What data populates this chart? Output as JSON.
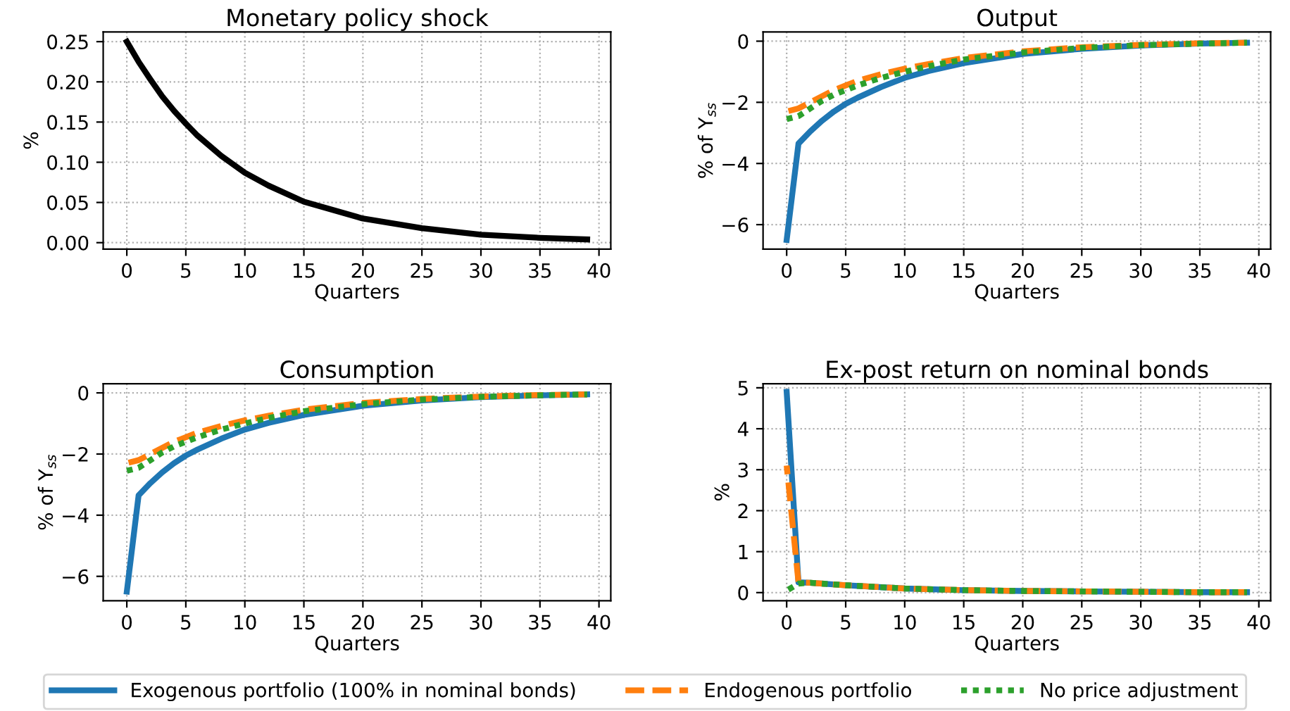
{
  "chart_data": [
    {
      "type": "line",
      "title": "Monetary policy shock",
      "xlabel": "Quarters",
      "ylabel": "%",
      "xlim": [
        -2,
        41
      ],
      "xticks": [
        0,
        5,
        10,
        15,
        20,
        25,
        30,
        35,
        40
      ],
      "ylim": [
        -0.008,
        0.262
      ],
      "yticks": [
        {
          "value": 0,
          "label": "0.00"
        },
        {
          "value": 0.05,
          "label": "0.05"
        },
        {
          "value": 0.1,
          "label": "0.10"
        },
        {
          "value": 0.15,
          "label": "0.15"
        },
        {
          "value": 0.2,
          "label": "0.20"
        },
        {
          "value": 0.25,
          "label": "0.25"
        }
      ],
      "grid": true,
      "x": [
        0,
        1,
        2,
        3,
        4,
        5,
        6,
        8,
        10,
        12,
        15,
        20,
        25,
        30,
        35,
        39
      ],
      "series": [
        {
          "color": "#000000",
          "line_style": "solid",
          "values": [
            0.25,
            0.225,
            0.203,
            0.182,
            0.164,
            0.148,
            0.133,
            0.108,
            0.087,
            0.071,
            0.051,
            0.03,
            0.018,
            0.01,
            0.006,
            0.004
          ]
        }
      ]
    },
    {
      "type": "line",
      "title": "Output",
      "xlabel": "Quarters",
      "ylabel": "% of Y$_{ss}$",
      "xlim": [
        -2,
        41
      ],
      "xticks": [
        0,
        5,
        10,
        15,
        20,
        25,
        30,
        35,
        40
      ],
      "ylim": [
        -6.8,
        0.3
      ],
      "yticks": [
        {
          "value": -6,
          "label": "−6"
        },
        {
          "value": -4,
          "label": "−4"
        },
        {
          "value": -2,
          "label": "−2"
        },
        0
      ],
      "grid": true,
      "x": [
        0,
        1,
        2,
        3,
        4,
        5,
        6,
        8,
        10,
        12,
        15,
        20,
        25,
        30,
        35,
        39
      ],
      "series": [
        {
          "color": "#1f77b4",
          "line_style": "solid",
          "values": [
            -6.5,
            -3.35,
            -2.95,
            -2.6,
            -2.3,
            -2.05,
            -1.85,
            -1.5,
            -1.2,
            -0.98,
            -0.72,
            -0.42,
            -0.25,
            -0.14,
            -0.08,
            -0.05
          ]
        },
        {
          "color": "#ff7f0e",
          "line_style": "dashed",
          "values": [
            -2.3,
            -2.2,
            -2.0,
            -1.8,
            -1.6,
            -1.45,
            -1.3,
            -1.08,
            -0.9,
            -0.75,
            -0.55,
            -0.33,
            -0.2,
            -0.12,
            -0.07,
            -0.05
          ]
        },
        {
          "color": "#2ca02c",
          "line_style": "dotted",
          "values": [
            -2.55,
            -2.45,
            -2.2,
            -1.95,
            -1.75,
            -1.6,
            -1.45,
            -1.2,
            -1.0,
            -0.82,
            -0.6,
            -0.37,
            -0.22,
            -0.13,
            -0.08,
            -0.05
          ]
        }
      ]
    },
    {
      "type": "line",
      "title": "Consumption",
      "xlabel": "Quarters",
      "ylabel": "% of Y$_{ss}$",
      "xlim": [
        -2,
        41
      ],
      "xticks": [
        0,
        5,
        10,
        15,
        20,
        25,
        30,
        35,
        40
      ],
      "ylim": [
        -6.8,
        0.3
      ],
      "yticks": [
        {
          "value": -6,
          "label": "−6"
        },
        {
          "value": -4,
          "label": "−4"
        },
        {
          "value": -2,
          "label": "−2"
        },
        0
      ],
      "grid": true,
      "x": [
        0,
        1,
        2,
        3,
        4,
        5,
        6,
        8,
        10,
        12,
        15,
        20,
        25,
        30,
        35,
        39
      ],
      "series": [
        {
          "color": "#1f77b4",
          "line_style": "solid",
          "values": [
            -6.5,
            -3.35,
            -2.95,
            -2.6,
            -2.3,
            -2.05,
            -1.85,
            -1.5,
            -1.2,
            -0.98,
            -0.72,
            -0.42,
            -0.25,
            -0.14,
            -0.08,
            -0.05
          ]
        },
        {
          "color": "#ff7f0e",
          "line_style": "dashed",
          "values": [
            -2.3,
            -2.2,
            -2.0,
            -1.8,
            -1.6,
            -1.45,
            -1.3,
            -1.08,
            -0.9,
            -0.75,
            -0.55,
            -0.33,
            -0.2,
            -0.12,
            -0.07,
            -0.05
          ]
        },
        {
          "color": "#2ca02c",
          "line_style": "dotted",
          "values": [
            -2.55,
            -2.45,
            -2.2,
            -1.95,
            -1.75,
            -1.6,
            -1.45,
            -1.2,
            -1.0,
            -0.82,
            -0.6,
            -0.37,
            -0.22,
            -0.13,
            -0.08,
            -0.05
          ]
        }
      ]
    },
    {
      "type": "line",
      "title": "Ex-post return on nominal bonds",
      "xlabel": "Quarters",
      "ylabel": "%",
      "xlim": [
        -2,
        41
      ],
      "xticks": [
        0,
        5,
        10,
        15,
        20,
        25,
        30,
        35,
        40
      ],
      "ylim": [
        -0.2,
        5.1
      ],
      "yticks": [
        0,
        1,
        2,
        3,
        4,
        5
      ],
      "grid": true,
      "legend": "bottom",
      "x": [
        0,
        1,
        2,
        5,
        10,
        15,
        20,
        25,
        30,
        35,
        39
      ],
      "series": [
        {
          "name": "Exogenous portfolio (100% in nominal bonds)",
          "color": "#1f77b4",
          "line_style": "solid",
          "values": [
            4.9,
            0.25,
            0.24,
            0.18,
            0.1,
            0.06,
            0.04,
            0.03,
            0.02,
            0.01,
            0.01
          ]
        },
        {
          "name": "Endogenous portfolio",
          "color": "#ff7f0e",
          "line_style": "dashed",
          "values": [
            3.1,
            0.25,
            0.24,
            0.18,
            0.1,
            0.06,
            0.04,
            0.03,
            0.02,
            0.01,
            0.01
          ]
        },
        {
          "name": "No price adjustment",
          "color": "#2ca02c",
          "line_style": "dotted",
          "values": [
            0.05,
            0.22,
            0.24,
            0.18,
            0.1,
            0.06,
            0.04,
            0.03,
            0.02,
            0.01,
            0.01
          ]
        }
      ]
    }
  ]
}
